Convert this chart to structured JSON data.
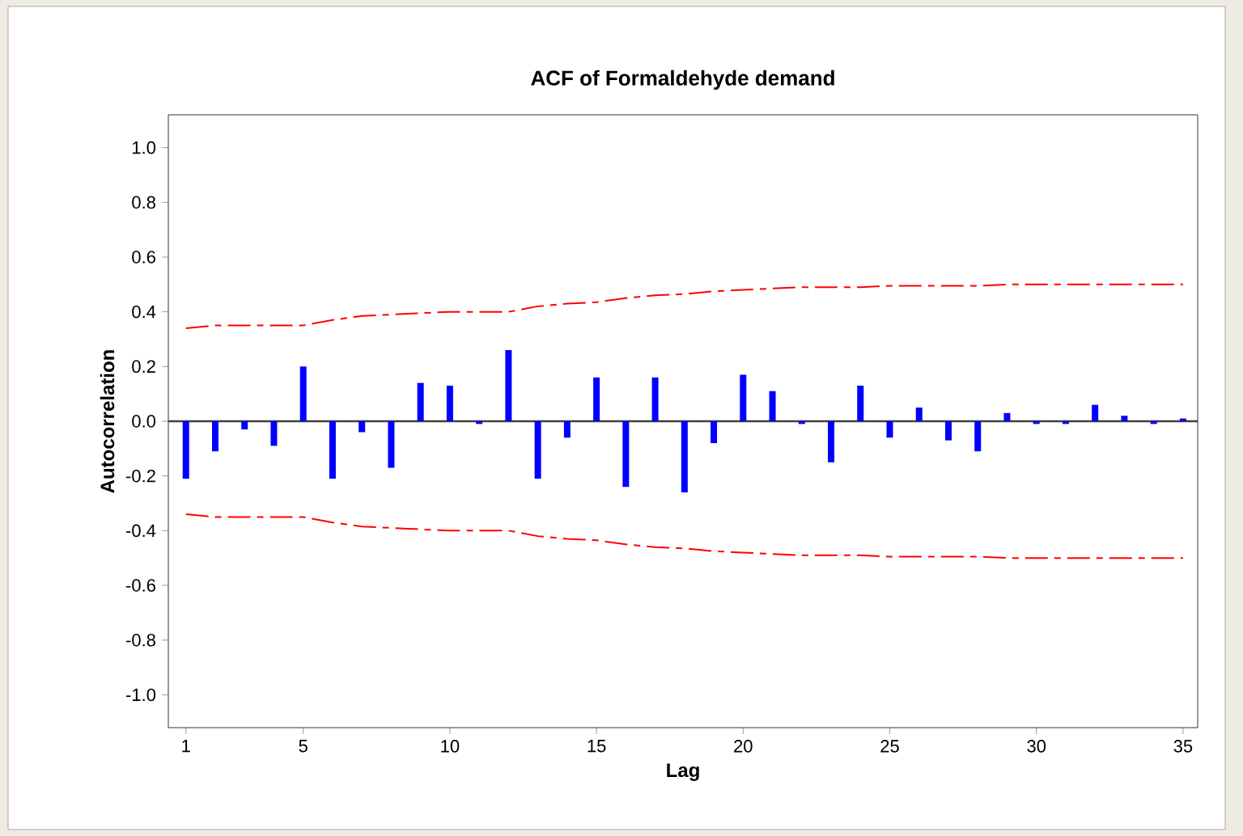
{
  "chart_data": {
    "type": "bar",
    "title": "ACF of Formaldehyde demand",
    "xlabel": "Lag",
    "ylabel": "Autocorrelation",
    "x": [
      1,
      2,
      3,
      4,
      5,
      6,
      7,
      8,
      9,
      10,
      11,
      12,
      13,
      14,
      15,
      16,
      17,
      18,
      19,
      20,
      21,
      22,
      23,
      24,
      25,
      26,
      27,
      28,
      29,
      30,
      31,
      32,
      33,
      34,
      35
    ],
    "series": [
      {
        "color": "#0000ff",
        "values": [
          -0.21,
          -0.11,
          -0.03,
          -0.09,
          0.2,
          -0.21,
          -0.04,
          -0.17,
          0.14,
          0.13,
          -0.01,
          0.26,
          -0.21,
          -0.06,
          0.16,
          -0.24,
          0.16,
          -0.26,
          -0.08,
          0.17,
          0.11,
          -0.01,
          -0.15,
          0.13,
          -0.06,
          0.05,
          -0.07,
          -0.11,
          0.03,
          -0.01,
          -0.01,
          0.06,
          0.02,
          -0.01,
          0.01
        ]
      },
      {
        "type": "line",
        "color": "#ff0000",
        "line_style": "dashed",
        "values": [
          0.34,
          0.35,
          0.35,
          0.35,
          0.35,
          0.37,
          0.385,
          0.39,
          0.395,
          0.4,
          0.4,
          0.4,
          0.42,
          0.43,
          0.435,
          0.45,
          0.46,
          0.465,
          0.475,
          0.48,
          0.485,
          0.49,
          0.49,
          0.49,
          0.495,
          0.495,
          0.495,
          0.495,
          0.5,
          0.5,
          0.5,
          0.5,
          0.5,
          0.5,
          0.5
        ]
      },
      {
        "type": "line",
        "color": "#ff0000",
        "line_style": "dashed",
        "values": [
          -0.34,
          -0.35,
          -0.35,
          -0.35,
          -0.35,
          -0.37,
          -0.385,
          -0.39,
          -0.395,
          -0.4,
          -0.4,
          -0.4,
          -0.42,
          -0.43,
          -0.435,
          -0.45,
          -0.46,
          -0.465,
          -0.475,
          -0.48,
          -0.485,
          -0.49,
          -0.49,
          -0.49,
          -0.495,
          -0.495,
          -0.495,
          -0.495,
          -0.5,
          -0.5,
          -0.5,
          -0.5,
          -0.5,
          -0.5,
          -0.5
        ]
      }
    ],
    "ref_lines": [
      {
        "axis": "y",
        "value": 0,
        "color": "#404040"
      }
    ],
    "xlim": [
      0.4,
      35.5
    ],
    "xticks": [
      1,
      5,
      10,
      15,
      20,
      25,
      30,
      35
    ],
    "ylim": [
      -1.12,
      1.12
    ],
    "yticks": [
      {
        "value": -1.0,
        "label": "-1.0"
      },
      {
        "value": -0.8,
        "label": "-0.8"
      },
      {
        "value": -0.6,
        "label": "-0.6"
      },
      {
        "value": -0.4,
        "label": "-0.4"
      },
      {
        "value": -0.2,
        "label": "-0.2"
      },
      {
        "value": 0,
        "label": "0.0"
      },
      {
        "value": 0.2,
        "label": "0.2"
      },
      {
        "value": 0.4,
        "label": "0.4"
      },
      {
        "value": 0.6,
        "label": "0.6"
      },
      {
        "value": 0.8,
        "label": "0.8"
      },
      {
        "value": 1.0,
        "label": "1.0"
      }
    ]
  }
}
